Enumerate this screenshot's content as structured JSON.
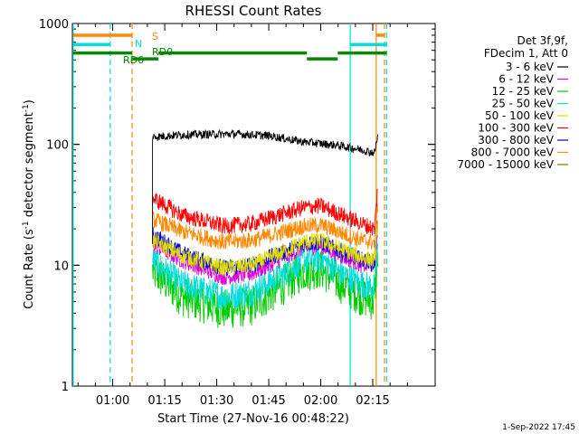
{
  "chart_data": {
    "type": "line",
    "title": "RHESSI Count Rates",
    "xlabel": "Start Time (27-Nov-16 00:48:22)",
    "ylabel_main": "Count Rate (s",
    "ylabel_sup1": "-1",
    "ylabel_mid": " detector segment",
    "ylabel_sup2": "-1",
    "ylabel_end": ")",
    "y_scale": "log",
    "ylim": [
      1,
      1000
    ],
    "xlim_minutes": [
      48.37,
      153.0
    ],
    "x_ticks": [
      {
        "label": "01:00",
        "minutes": 60
      },
      {
        "label": "01:15",
        "minutes": 75
      },
      {
        "label": "01:30",
        "minutes": 90
      },
      {
        "label": "01:45",
        "minutes": 105
      },
      {
        "label": "02:00",
        "minutes": 120
      },
      {
        "label": "02:15",
        "minutes": 135
      }
    ],
    "y_ticks": [
      {
        "label": "1",
        "value": 1
      },
      {
        "label": "10",
        "value": 10
      },
      {
        "label": "100",
        "value": 100
      },
      {
        "label": "1000",
        "value": 1000
      }
    ],
    "legend_header": [
      "Det 3f,9f,",
      "FDecim 1, Att 0"
    ],
    "legend_position": "right",
    "series": [
      {
        "name": "3 - 6 keV",
        "color": "#000000",
        "kind": "flat",
        "points": [
          [
            71.5,
            115
          ],
          [
            80,
            120
          ],
          [
            95,
            122
          ],
          [
            105,
            118
          ],
          [
            115,
            105
          ],
          [
            125,
            98
          ],
          [
            132,
            90
          ],
          [
            135.5,
            85
          ],
          [
            136.5,
            120
          ]
        ]
      },
      {
        "name": "6 - 12 keV",
        "color": "#dd00dd",
        "kind": "dip",
        "points": [
          [
            71.5,
            15
          ],
          [
            80,
            11
          ],
          [
            92,
            8
          ],
          [
            100,
            8.5
          ],
          [
            108,
            11
          ],
          [
            115,
            14
          ],
          [
            120,
            14.5
          ],
          [
            126,
            12
          ],
          [
            132,
            10
          ],
          [
            135.5,
            10
          ],
          [
            136.5,
            22
          ]
        ]
      },
      {
        "name": "12 - 25 keV",
        "color": "#00cc00",
        "kind": "dip",
        "points": [
          [
            71.5,
            9
          ],
          [
            80,
            5.5
          ],
          [
            92,
            4.3
          ],
          [
            100,
            4.6
          ],
          [
            108,
            6.5
          ],
          [
            115,
            9
          ],
          [
            120,
            9.3
          ],
          [
            126,
            7
          ],
          [
            132,
            5.5
          ],
          [
            135.5,
            5
          ],
          [
            136.5,
            14
          ]
        ]
      },
      {
        "name": "25 - 50 keV",
        "color": "#00dddd",
        "kind": "dip",
        "points": [
          [
            71.5,
            11
          ],
          [
            80,
            7
          ],
          [
            92,
            5.5
          ],
          [
            100,
            6
          ],
          [
            108,
            8
          ],
          [
            115,
            11
          ],
          [
            120,
            11.5
          ],
          [
            126,
            8.5
          ],
          [
            132,
            7
          ],
          [
            135.5,
            6.5
          ],
          [
            136.5,
            16
          ]
        ]
      },
      {
        "name": "50 - 100 keV",
        "color": "#dddd00",
        "kind": "dip",
        "points": [
          [
            71.5,
            16
          ],
          [
            80,
            12
          ],
          [
            92,
            9.5
          ],
          [
            100,
            10
          ],
          [
            108,
            12.5
          ],
          [
            115,
            15.5
          ],
          [
            120,
            16
          ],
          [
            126,
            13.5
          ],
          [
            132,
            11.5
          ],
          [
            135.5,
            11
          ],
          [
            136.5,
            24
          ]
        ]
      },
      {
        "name": "100 - 300 keV",
        "color": "#ff0000",
        "kind": "dip",
        "points": [
          [
            71.5,
            36
          ],
          [
            80,
            26
          ],
          [
            92,
            21
          ],
          [
            100,
            22
          ],
          [
            108,
            26
          ],
          [
            115,
            30
          ],
          [
            120,
            31
          ],
          [
            126,
            26
          ],
          [
            132,
            22
          ],
          [
            135.5,
            20
          ],
          [
            136.5,
            45
          ]
        ]
      },
      {
        "name": "300 - 800 keV",
        "color": "#0000dd",
        "kind": "dip",
        "points": [
          [
            71.5,
            18
          ],
          [
            80,
            12.5
          ],
          [
            92,
            9.5
          ],
          [
            100,
            10
          ],
          [
            108,
            12.5
          ],
          [
            115,
            15
          ],
          [
            120,
            15.5
          ],
          [
            126,
            13
          ],
          [
            132,
            11
          ],
          [
            135.5,
            10.5
          ],
          [
            136.5,
            28
          ]
        ]
      },
      {
        "name": "800 - 7000 keV",
        "color": "#ff8800",
        "kind": "dip",
        "points": [
          [
            71.5,
            24
          ],
          [
            80,
            19
          ],
          [
            92,
            15.5
          ],
          [
            100,
            16
          ],
          [
            108,
            18.5
          ],
          [
            115,
            21
          ],
          [
            120,
            21.5
          ],
          [
            126,
            18.5
          ],
          [
            132,
            16
          ],
          [
            135.5,
            15.5
          ],
          [
            136.5,
            32
          ]
        ]
      },
      {
        "name": "7000 - 15000 keV",
        "color": "#aa6600",
        "kind": "none",
        "points": []
      }
    ],
    "vlines": [
      {
        "minutes": 48.6,
        "color": "#00dddd",
        "style": "solid"
      },
      {
        "minutes": 59.3,
        "color": "#00dddd",
        "style": "dashed"
      },
      {
        "minutes": 65.6,
        "color": "#ff8800",
        "style": "dashed"
      },
      {
        "minutes": 128.5,
        "color": "#00dddd",
        "style": "solid"
      },
      {
        "minutes": 136.0,
        "color": "#ff8800",
        "style": "solid"
      },
      {
        "minutes": 138.4,
        "color": "#ff8800",
        "style": "dashed"
      },
      {
        "minutes": 139.0,
        "color": "#00dddd",
        "style": "dashed"
      }
    ],
    "flag_bars": [
      {
        "label": "S",
        "color": "#ff8800",
        "y_value": 800,
        "segments": [
          [
            48.6,
            65.6
          ],
          [
            136.0,
            138.4
          ]
        ]
      },
      {
        "label": "N",
        "color": "#00dddd",
        "y_value": 670,
        "segments": [
          [
            48.6,
            59.3
          ],
          [
            128.5,
            139.0
          ]
        ]
      },
      {
        "label": "RD6",
        "color": "#008800",
        "y_value": 570,
        "segments": [
          [
            48.6,
            65.6
          ],
          [
            129.3,
            139.0
          ]
        ]
      },
      {
        "label": "RD0",
        "color": "#008800",
        "y_value": 510,
        "segments": [
          [
            65.6,
            73.2
          ],
          [
            116.0,
            124.9
          ]
        ]
      },
      {
        "label": "",
        "color": "#008800",
        "y_value": 570,
        "segments": [
          [
            73.2,
            116.0
          ],
          [
            124.9,
            129.3
          ]
        ]
      }
    ],
    "footer_date": "1-Sep-2022 17:45"
  }
}
